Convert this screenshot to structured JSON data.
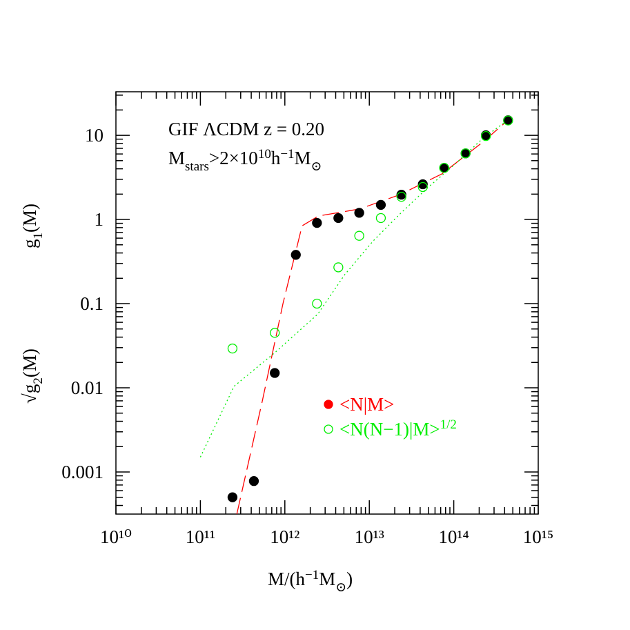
{
  "chart_data": {
    "type": "scatter",
    "xlabel": [
      "M/(h",
      "−1",
      "M",
      "⊙",
      ")"
    ],
    "ylabel_upper": [
      "g",
      "1",
      "(M)"
    ],
    "ylabel_lower": [
      "√g",
      "2",
      "(M)"
    ],
    "annotations": [
      [
        "GIF ΛCDM z = 0.20"
      ],
      [
        "M",
        "stars",
        ">2×10",
        "10",
        "h",
        "−1",
        "M",
        "⊙"
      ]
    ],
    "xscale": "log",
    "yscale": "log",
    "xlim": [
      10000000000,
      1000000000000000
    ],
    "ylim": [
      0.000316,
      32.9
    ],
    "xticks": [
      {
        "value": 10000000000,
        "label": "10¹⁰"
      },
      {
        "value": 100000000000,
        "label": "10¹¹"
      },
      {
        "value": 1000000000000,
        "label": "10¹²"
      },
      {
        "value": 10000000000000,
        "label": "10¹³"
      },
      {
        "value": 100000000000000,
        "label": "10¹⁴"
      },
      {
        "value": 1000000000000000,
        "label": "10¹⁵"
      }
    ],
    "yticks": [
      0.001,
      0.01,
      0.1,
      1,
      10
    ],
    "minor_ticks": true,
    "series": [
      {
        "name": "<N|M>",
        "color": "#ff0000",
        "point_color": "#000000",
        "marker": "filled",
        "dash": "dashed",
        "x": [
          240000000000,
          430000000000,
          760000000000,
          1350000000000,
          2400000000000,
          4300000000000,
          7600000000000,
          13700000000000,
          24000000000000,
          43000000000000,
          77000000000000,
          138000000000000,
          240000000000000,
          440000000000000
        ],
        "values": [
          0.0005,
          0.00078,
          0.015,
          0.38,
          0.91,
          1.04,
          1.2,
          1.49,
          1.97,
          2.62,
          4.1,
          6.1,
          10,
          15.1
        ],
        "curve_x": [
          270000000000,
          540000000000,
          950000000000,
          1600000000000,
          2500000000000,
          7600000000000,
          23000000000000,
          72000000000000,
          224000000000000,
          440000000000000
        ],
        "curve_values": [
          0.000316,
          0.0069,
          0.1,
          0.84,
          1.1,
          1.33,
          1.97,
          3.47,
          8.4,
          15.2
        ]
      },
      {
        "name": "<N(N−1)|M>",
        "name_superscript": "1/2",
        "color": "#00ee00",
        "point_color": "#00ee00",
        "marker": "open",
        "dash": "dotted",
        "x": [
          240000000000,
          760000000000,
          2400000000000,
          4300000000000,
          7600000000000,
          13700000000000,
          24000000000000,
          43000000000000,
          77000000000000,
          138000000000000,
          240000000000000,
          440000000000000
        ],
        "values": [
          0.0293,
          0.045,
          0.1,
          0.27,
          0.64,
          1.04,
          1.86,
          2.43,
          4.1,
          6.1,
          9.8,
          15
        ],
        "curve_x": [
          100000000000,
          250000000000,
          790000000000,
          2450000000000,
          5100000000000,
          11000000000000,
          23000000000000,
          49000000000000,
          105000000000000,
          224000000000000,
          440000000000000
        ],
        "curve_values": [
          0.0015,
          0.0104,
          0.027,
          0.075,
          0.22,
          0.55,
          1.16,
          2.38,
          4.6,
          9.3,
          15.2
        ]
      }
    ]
  }
}
